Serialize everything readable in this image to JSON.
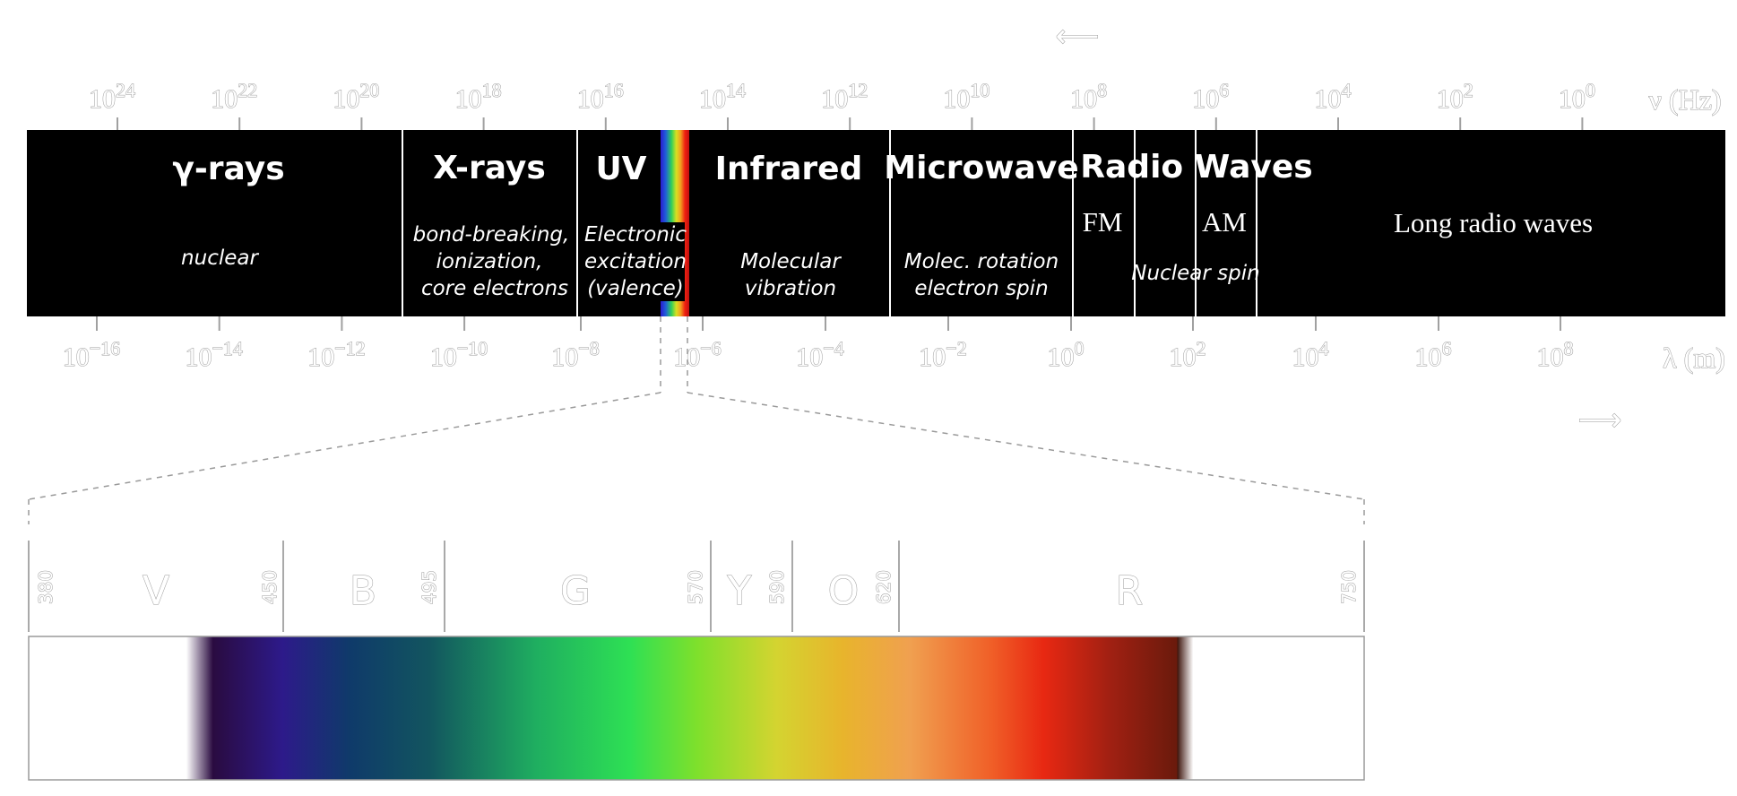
{
  "arrows": {
    "top": "⟵",
    "bottom": "⟶"
  },
  "frequency_axis": {
    "unit_label": "ν (Hz)",
    "ticks": [
      {
        "base": "10",
        "exp": "24"
      },
      {
        "base": "10",
        "exp": "22"
      },
      {
        "base": "10",
        "exp": "20"
      },
      {
        "base": "10",
        "exp": "18"
      },
      {
        "base": "10",
        "exp": "16"
      },
      {
        "base": "10",
        "exp": "14"
      },
      {
        "base": "10",
        "exp": "12"
      },
      {
        "base": "10",
        "exp": "10"
      },
      {
        "base": "10",
        "exp": "8"
      },
      {
        "base": "10",
        "exp": "6"
      },
      {
        "base": "10",
        "exp": "4"
      },
      {
        "base": "10",
        "exp": "2"
      },
      {
        "base": "10",
        "exp": "0"
      }
    ]
  },
  "wavelength_axis": {
    "unit_label": "λ (m)",
    "ticks": [
      {
        "base": "10",
        "exp": "−16"
      },
      {
        "base": "10",
        "exp": "−14"
      },
      {
        "base": "10",
        "exp": "−12"
      },
      {
        "base": "10",
        "exp": "−10"
      },
      {
        "base": "10",
        "exp": "−8"
      },
      {
        "base": "10",
        "exp": "−6"
      },
      {
        "base": "10",
        "exp": "−4"
      },
      {
        "base": "10",
        "exp": "−2"
      },
      {
        "base": "10",
        "exp": "0"
      },
      {
        "base": "10",
        "exp": "2"
      },
      {
        "base": "10",
        "exp": "4"
      },
      {
        "base": "10",
        "exp": "6"
      },
      {
        "base": "10",
        "exp": "8"
      }
    ]
  },
  "bands": {
    "gamma": {
      "title": "γ-rays",
      "subtitle": "nuclear"
    },
    "xray": {
      "title": "X-rays",
      "sub1": "bond-breaking,",
      "sub2": "ionization,",
      "sub3": "core electrons"
    },
    "uv": {
      "title": "UV",
      "sub1": "Electronic",
      "sub2": "excitation",
      "sub3": "(valence)"
    },
    "infrared": {
      "title": "Infrared",
      "sub1": "Molecular",
      "sub2": "vibration"
    },
    "microwave": {
      "title": "Microwave",
      "sub1": "Molec. rotation",
      "sub2": "electron spin"
    },
    "radio": {
      "title": "Radio Waves",
      "fm": "FM",
      "am": "AM",
      "nuclear_spin": "Nuclear spin",
      "long": "Long radio waves"
    }
  },
  "visible": {
    "nm_labels": [
      "380",
      "450",
      "495",
      "570",
      "590",
      "620",
      "750"
    ],
    "colors": [
      "V",
      "B",
      "G",
      "Y",
      "O",
      "R"
    ]
  }
}
